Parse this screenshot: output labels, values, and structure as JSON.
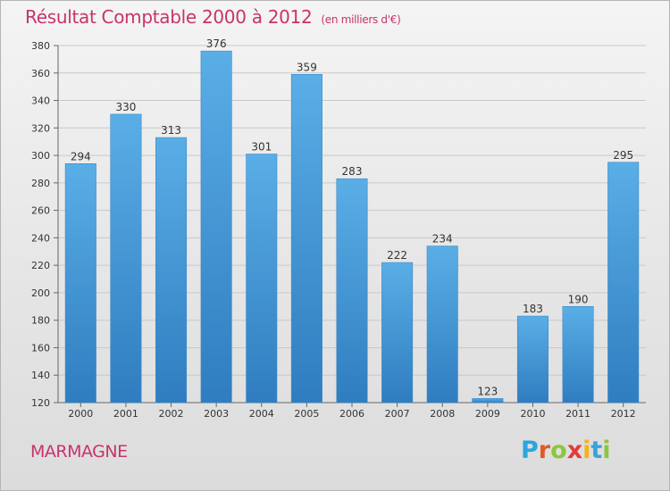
{
  "header": {
    "title": "Résultat Comptable 2000 à 2012",
    "subtitle": "(en milliers d'€)"
  },
  "footer": {
    "commune": "MARMAGNE",
    "logo_letters": [
      {
        "ch": "P",
        "color": "#2aa7de"
      },
      {
        "ch": "r",
        "color": "#e05a2a"
      },
      {
        "ch": "o",
        "color": "#8cc63f"
      },
      {
        "ch": "x",
        "color": "#e23b3b"
      },
      {
        "ch": "i",
        "color": "#f6b21a"
      },
      {
        "ch": "t",
        "color": "#3aa3dd"
      },
      {
        "ch": "i",
        "color": "#8cc63f"
      }
    ]
  },
  "colors": {
    "bar_top": "#5aaee6",
    "bar_bottom": "#2f7dc0",
    "title": "#c8336c",
    "grid": "#c9c9c9"
  },
  "chart_data": {
    "type": "bar",
    "categories": [
      "2000",
      "2001",
      "2002",
      "2003",
      "2004",
      "2005",
      "2006",
      "2007",
      "2008",
      "2009",
      "2010",
      "2011",
      "2012"
    ],
    "values": [
      294,
      330,
      313,
      376,
      301,
      359,
      283,
      222,
      234,
      123,
      183,
      190,
      295
    ],
    "ylim": [
      120,
      380
    ],
    "yticks": [
      120,
      140,
      160,
      180,
      200,
      220,
      240,
      260,
      280,
      300,
      320,
      340,
      360,
      380
    ],
    "grid": true,
    "xlabel": "",
    "ylabel": ""
  }
}
